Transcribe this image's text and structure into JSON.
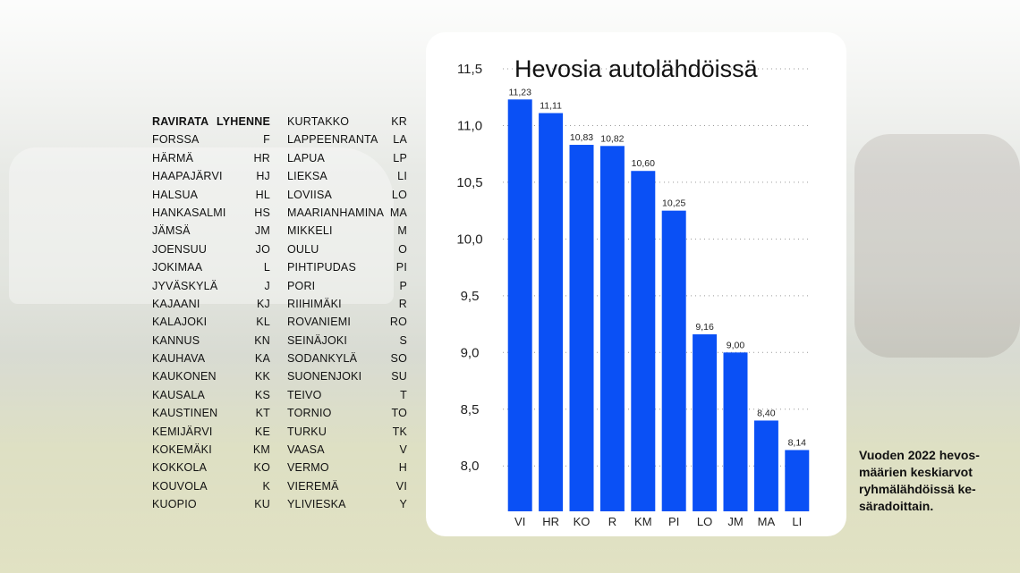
{
  "table": {
    "header": {
      "track": "RAVIRATA",
      "abbr": "LYHENNE"
    },
    "left": [
      {
        "name": "FORSSA",
        "abbr": "F"
      },
      {
        "name": "HÄRMÄ",
        "abbr": "HR"
      },
      {
        "name": "HAAPAJÄRVI",
        "abbr": "HJ"
      },
      {
        "name": "HALSUA",
        "abbr": "HL"
      },
      {
        "name": "HANKASALMI",
        "abbr": "HS"
      },
      {
        "name": "JÄMSÄ",
        "abbr": "JM"
      },
      {
        "name": "JOENSUU",
        "abbr": "JO"
      },
      {
        "name": "JOKIMAA",
        "abbr": "L"
      },
      {
        "name": "JYVÄSKYLÄ",
        "abbr": "J"
      },
      {
        "name": "KAJAANI",
        "abbr": "KJ"
      },
      {
        "name": "KALAJOKI",
        "abbr": "KL"
      },
      {
        "name": "KANNUS",
        "abbr": "KN"
      },
      {
        "name": "KAUHAVA",
        "abbr": "KA"
      },
      {
        "name": "KAUKONEN",
        "abbr": "KK"
      },
      {
        "name": "KAUSALA",
        "abbr": "KS"
      },
      {
        "name": "KAUSTINEN",
        "abbr": "KT"
      },
      {
        "name": "KEMIJÄRVI",
        "abbr": "KE"
      },
      {
        "name": "KOKEMÄKI",
        "abbr": "KM"
      },
      {
        "name": "KOKKOLA",
        "abbr": "KO"
      },
      {
        "name": "KOUVOLA",
        "abbr": "K"
      },
      {
        "name": "KUOPIO",
        "abbr": "KU"
      }
    ],
    "right": [
      {
        "name": "KURTAKKO",
        "abbr": "KR"
      },
      {
        "name": "LAPPEENRANTA",
        "abbr": "LA"
      },
      {
        "name": "LAPUA",
        "abbr": "LP"
      },
      {
        "name": "LIEKSA",
        "abbr": "LI"
      },
      {
        "name": "LOVIISA",
        "abbr": "LO"
      },
      {
        "name": "MAARIANHAMINA",
        "abbr": "MA"
      },
      {
        "name": "MIKKELI",
        "abbr": "M"
      },
      {
        "name": "OULU",
        "abbr": "O"
      },
      {
        "name": "PIHTIPUDAS",
        "abbr": "PI"
      },
      {
        "name": "PORI",
        "abbr": "P"
      },
      {
        "name": "RIIHIMÄKI",
        "abbr": "R"
      },
      {
        "name": "ROVANIEMI",
        "abbr": "RO"
      },
      {
        "name": "SEINÄJOKI",
        "abbr": "S"
      },
      {
        "name": "SODANKYLÄ",
        "abbr": "SO"
      },
      {
        "name": "SUONENJOKI",
        "abbr": "SU"
      },
      {
        "name": "TEIVO",
        "abbr": "T"
      },
      {
        "name": "TORNIO",
        "abbr": "TO"
      },
      {
        "name": "TURKU",
        "abbr": "TK"
      },
      {
        "name": "VAASA",
        "abbr": "V"
      },
      {
        "name": "VERMO",
        "abbr": "H"
      },
      {
        "name": "VIEREMÄ",
        "abbr": "VI"
      },
      {
        "name": "YLIVIESKA",
        "abbr": "Y"
      }
    ]
  },
  "caption": "Vuoden 2022 hevos-määrien keskiarvot ryhmälähdöissä ke-säradoittain.",
  "chart_data": {
    "type": "bar",
    "title": "Hevosia autolähdöissä",
    "categories": [
      "VI",
      "HR",
      "KO",
      "R",
      "KM",
      "PI",
      "LO",
      "JM",
      "MA",
      "LI"
    ],
    "values": [
      11.23,
      11.11,
      10.83,
      10.82,
      10.6,
      10.25,
      9.16,
      9.0,
      8.4,
      8.14
    ],
    "value_labels": [
      "11,23",
      "11,11",
      "10,83",
      "10,82",
      "10,60",
      "10,25",
      "9,16",
      "9,00",
      "8,40",
      "8,14"
    ],
    "y_ticks": [
      8.0,
      8.5,
      9.0,
      9.5,
      10.0,
      10.5,
      11.0,
      11.5
    ],
    "y_tick_labels": [
      "8,0",
      "8,5",
      "9,0",
      "9,5",
      "10,0",
      "10,5",
      "11,0",
      "11,5"
    ],
    "ylim": [
      7.6,
      11.5
    ],
    "xlabel": "",
    "ylabel": "",
    "grid": "horizontal dotted",
    "bar_color": "#0a50f5"
  }
}
